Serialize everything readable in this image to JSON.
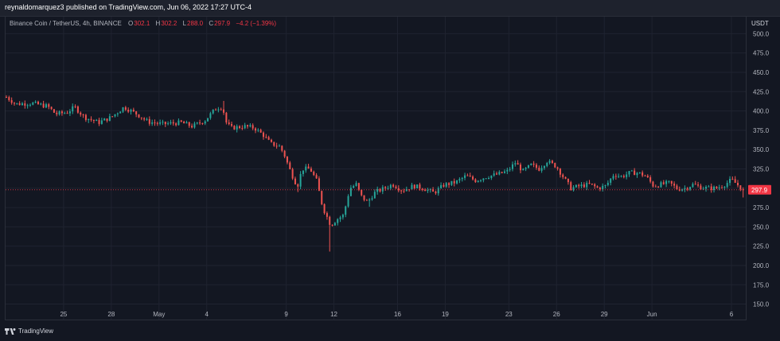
{
  "header": {
    "publisher_text": "reynaldomarquez3 published on TradingView.com, Jun 06, 2022 17:27 UTC-4"
  },
  "legend": {
    "symbol": "Binance Coin / TetherUS, 4h, BINANCE",
    "open_label": "O",
    "open": "302.1",
    "high_label": "H",
    "high": "302.2",
    "low_label": "L",
    "low": "288.0",
    "close_label": "C",
    "close": "297.9",
    "change": "−4.2 (−1.39%)"
  },
  "footer": {
    "brand": "TradingView"
  },
  "colors": {
    "background": "#131722",
    "up": "#26a69a",
    "down": "#ef5350",
    "grid": "#1f2330",
    "price_tag": "#f23645"
  },
  "chart_data": {
    "type": "candlestick",
    "y_axis_currency": "USDT",
    "ylim": [
      130,
      522
    ],
    "y_ticks": [
      150,
      175,
      200,
      225,
      250,
      275,
      300,
      325,
      350,
      375,
      400,
      425,
      450,
      475,
      500
    ],
    "x_ticks": [
      {
        "label": "25",
        "day": 4
      },
      {
        "label": "28",
        "day": 7
      },
      {
        "label": "May",
        "day": 10
      },
      {
        "label": "4",
        "day": 13
      },
      {
        "label": "9",
        "day": 18
      },
      {
        "label": "12",
        "day": 21
      },
      {
        "label": "16",
        "day": 25
      },
      {
        "label": "19",
        "day": 28
      },
      {
        "label": "23",
        "day": 32
      },
      {
        "label": "26",
        "day": 35
      },
      {
        "label": "29",
        "day": 38
      },
      {
        "label": "Jun",
        "day": 41
      },
      {
        "label": "6",
        "day": 46
      }
    ],
    "x_range_days": [
      0.35,
      46.9
    ],
    "last_price": "297.9",
    "last_price_value": 297.9,
    "anchors": [
      [
        0.4,
        418
      ],
      [
        1.0,
        409
      ],
      [
        2.0,
        410
      ],
      [
        3.0,
        406
      ],
      [
        3.5,
        396
      ],
      [
        4.2,
        398
      ],
      [
        4.7,
        405
      ],
      [
        5.3,
        392
      ],
      [
        6.2,
        385
      ],
      [
        7.0,
        392
      ],
      [
        7.8,
        405
      ],
      [
        8.6,
        396
      ],
      [
        9.3,
        386
      ],
      [
        10.2,
        383
      ],
      [
        11.4,
        385
      ],
      [
        12.1,
        380
      ],
      [
        12.9,
        388
      ],
      [
        13.6,
        404
      ],
      [
        14.0,
        405
      ],
      [
        14.2,
        386
      ],
      [
        14.5,
        378
      ],
      [
        15.4,
        380
      ],
      [
        16.0,
        378
      ],
      [
        16.6,
        368
      ],
      [
        17.0,
        358
      ],
      [
        17.6,
        354
      ],
      [
        17.9,
        342
      ],
      [
        18.3,
        320
      ],
      [
        18.7,
        302
      ],
      [
        19.0,
        325
      ],
      [
        19.5,
        325
      ],
      [
        19.9,
        310
      ],
      [
        20.3,
        275
      ],
      [
        20.8,
        252
      ],
      [
        21.2,
        260
      ],
      [
        21.6,
        265
      ],
      [
        22.0,
        300
      ],
      [
        22.4,
        305
      ],
      [
        22.7,
        290
      ],
      [
        23.1,
        282
      ],
      [
        23.6,
        295
      ],
      [
        24.2,
        300
      ],
      [
        24.7,
        305
      ],
      [
        25.3,
        297
      ],
      [
        26.0,
        303
      ],
      [
        26.6,
        300
      ],
      [
        27.3,
        294
      ],
      [
        27.9,
        304
      ],
      [
        28.7,
        308
      ],
      [
        29.3,
        316
      ],
      [
        29.9,
        310
      ],
      [
        30.6,
        315
      ],
      [
        31.3,
        318
      ],
      [
        31.9,
        322
      ],
      [
        32.4,
        333
      ],
      [
        32.9,
        322
      ],
      [
        33.4,
        330
      ],
      [
        33.9,
        325
      ],
      [
        34.4,
        335
      ],
      [
        35.0,
        328
      ],
      [
        35.5,
        312
      ],
      [
        35.9,
        300
      ],
      [
        36.5,
        303
      ],
      [
        37.1,
        305
      ],
      [
        37.6,
        300
      ],
      [
        38.1,
        303
      ],
      [
        38.6,
        318
      ],
      [
        39.1,
        315
      ],
      [
        39.6,
        320
      ],
      [
        40.1,
        320
      ],
      [
        40.6,
        316
      ],
      [
        41.1,
        303
      ],
      [
        41.6,
        305
      ],
      [
        42.1,
        307
      ],
      [
        42.6,
        299
      ],
      [
        43.1,
        300
      ],
      [
        43.6,
        305
      ],
      [
        44.1,
        301
      ],
      [
        44.6,
        300
      ],
      [
        45.1,
        300
      ],
      [
        45.6,
        305
      ],
      [
        46.0,
        311
      ],
      [
        46.4,
        304
      ],
      [
        46.75,
        297.9
      ]
    ],
    "spikes": [
      {
        "day": 14.0,
        "high": 413
      },
      {
        "day": 20.8,
        "low": 218
      },
      {
        "day": 18.7,
        "low": 295
      },
      {
        "day": 23.3,
        "low": 276
      },
      {
        "day": 46.7,
        "low": 288
      }
    ]
  }
}
